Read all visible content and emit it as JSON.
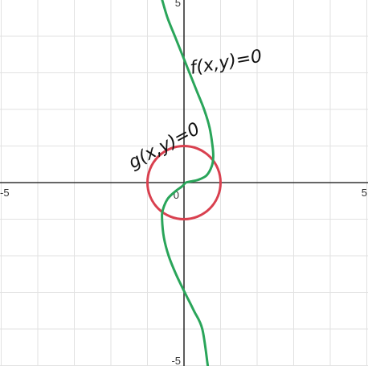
{
  "chart_data": {
    "type": "line",
    "title": "",
    "xlabel": "",
    "ylabel": "",
    "xlim": [
      -5,
      5
    ],
    "ylim": [
      -5,
      5
    ],
    "grid": true,
    "ticks": {
      "x_left": "-5",
      "x_right": "5",
      "y_bottom": "-5",
      "y_top": "5",
      "origin": "0"
    },
    "series": [
      {
        "name": "f(x,y)=0",
        "color": "#2aa55a",
        "x": [
          -0.6,
          -0.45,
          -0.25,
          -0.05,
          0.15,
          0.35,
          0.55,
          0.7,
          0.78,
          0.8,
          0.76,
          0.62,
          0.4,
          0.18,
          0.05,
          -0.05,
          -0.25,
          -0.45,
          -0.58,
          -0.6,
          -0.55,
          -0.42,
          -0.22,
          0.02,
          0.27,
          0.5,
          0.65
        ],
        "y": [
          5.0,
          4.5,
          4.0,
          3.5,
          3.0,
          2.5,
          2.0,
          1.5,
          1.0,
          0.7,
          0.45,
          0.2,
          0.08,
          0.03,
          0.0,
          -0.1,
          -0.25,
          -0.45,
          -0.75,
          -1.0,
          -1.5,
          -2.0,
          -2.5,
          -3.0,
          -3.5,
          -4.0,
          -5.0
        ]
      },
      {
        "name": "g(x,y)=0",
        "color": "#d9404f",
        "type": "circle",
        "center": [
          0,
          0
        ],
        "radius": 1
      }
    ],
    "annotations": [
      "f(x,y)=0",
      "g(x,y)=0"
    ]
  }
}
